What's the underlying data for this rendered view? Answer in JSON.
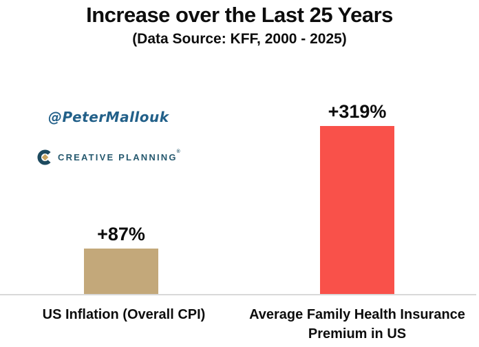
{
  "title": "Increase over the Last 25 Years",
  "subtitle": "(Data Source: KFF, 2000 - 2025)",
  "watermark": {
    "handle": "@PeterMallouk",
    "logo_text": "CREATIVE PLANNING",
    "logo_trademark": "®"
  },
  "chart_data": {
    "type": "bar",
    "title": "Increase over the Last 25 Years",
    "subtitle": "(Data Source: KFF, 2000 - 2025)",
    "categories": [
      "US Inflation (Overall CPI)",
      "Average Family Health Insurance Premium in US"
    ],
    "values": [
      87,
      319
    ],
    "data_labels": [
      "+87%",
      "+319%"
    ],
    "bar_colors": [
      "#c3a87a",
      "#f9514a"
    ],
    "ylim": [
      0,
      338
    ],
    "grid": false,
    "legend": false,
    "axis_line_color": "#d9d9d9",
    "xlabel": "",
    "ylabel": ""
  },
  "colors": {
    "handle_teal": "#226089",
    "logo_teal_mark": "#1d4a5f",
    "logo_gold": "#c9a460",
    "logo_text_teal": "#25586e"
  }
}
